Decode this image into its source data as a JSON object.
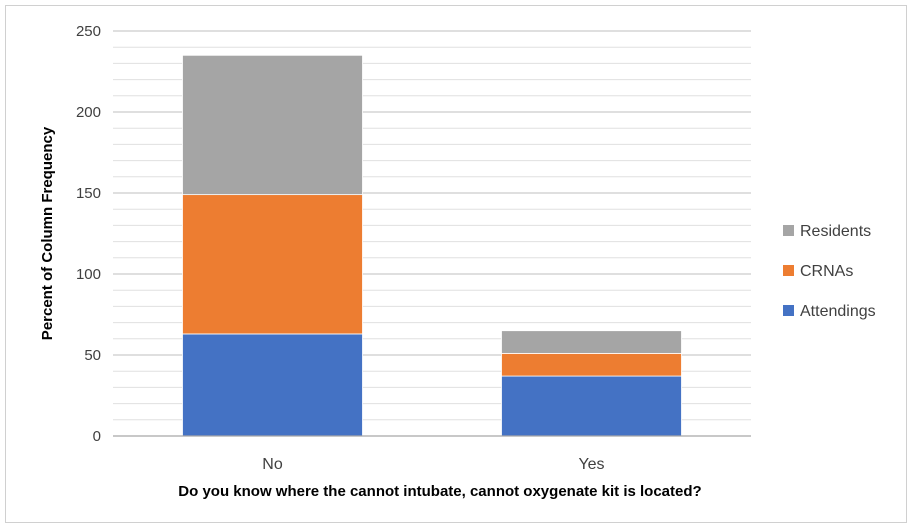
{
  "chart_data": {
    "type": "bar",
    "stacked": true,
    "categories": [
      "No",
      "Yes"
    ],
    "series": [
      {
        "name": "Attendings",
        "color": "#4472C4",
        "values": [
          63,
          37
        ]
      },
      {
        "name": "CRNAs",
        "color": "#ED7D31",
        "values": [
          86,
          14
        ]
      },
      {
        "name": "Residents",
        "color": "#A5A5A5",
        "values": [
          86,
          14
        ]
      }
    ],
    "title": "",
    "xlabel": "Do you know where the cannot intubate, cannot oxygenate kit is located?",
    "ylabel": "Percent of Column Frequency",
    "ylim": [
      0,
      250
    ],
    "major_ticks": [
      0,
      50,
      100,
      150,
      200,
      250
    ],
    "minor_step": 10,
    "grid": true,
    "legend": {
      "position": "right",
      "order": [
        "Residents",
        "CRNAs",
        "Attendings"
      ]
    }
  }
}
